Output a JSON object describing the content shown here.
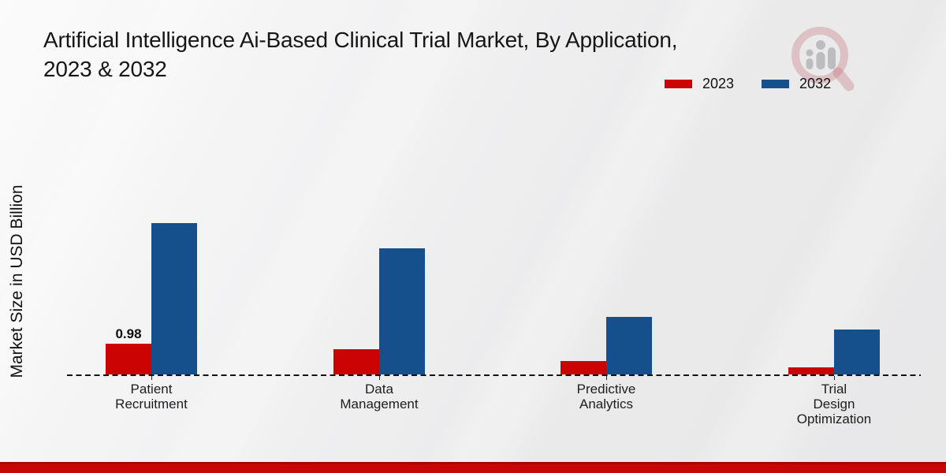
{
  "title": {
    "line1": "Artificial Intelligence Ai-Based Clinical Trial Market, By Application,",
    "line2": "2023 & 2032"
  },
  "chart_data": {
    "type": "bar",
    "title": "Artificial Intelligence Ai-Based Clinical Trial Market, By Application, 2023 & 2032",
    "xlabel": "",
    "ylabel": "Market Size in USD Billion",
    "categories": [
      "Patient Recruitment",
      "Data Management",
      "Predictive Analytics",
      "Trial Design Optimization"
    ],
    "series": [
      {
        "name": "2023",
        "color": "#cc0303",
        "values": [
          0.98,
          0.8,
          0.42,
          0.24
        ]
      },
      {
        "name": "2032",
        "color": "#15508c",
        "values": [
          4.85,
          4.05,
          1.85,
          1.45
        ]
      }
    ],
    "value_labels": [
      {
        "series": "2023",
        "category": "Patient Recruitment",
        "text": "0.98"
      }
    ],
    "ylim": [
      0,
      5.5
    ],
    "grid": false,
    "legend_position": "top-right",
    "baseline_style": "dashed"
  },
  "branding": {
    "watermark_icon": "magnifier-bar-chart-logo",
    "footer_band_color": "#c50707"
  }
}
